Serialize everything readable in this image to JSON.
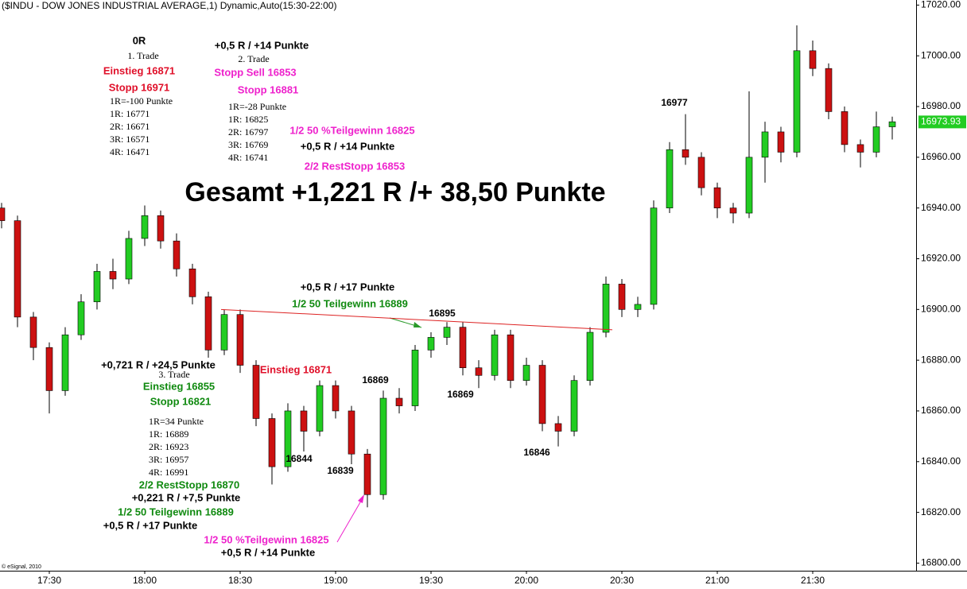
{
  "chart_data": {
    "type": "candlestick",
    "title": "($INDU - DOW JONES INDUSTRIAL AVERAGE,1) Dynamic,Auto(15:30-22:00)",
    "credit": "© eSignal, 2010",
    "x": [
      1035,
      1040,
      1045,
      1050,
      1055,
      1060,
      1065,
      1070,
      1075,
      1080,
      1085,
      1090,
      1095,
      1100,
      1105,
      1110,
      1115,
      1120,
      1125,
      1130,
      1135,
      1140,
      1145,
      1150,
      1155,
      1160,
      1165,
      1170,
      1175,
      1180,
      1185,
      1190,
      1195,
      1200,
      1205,
      1210,
      1215,
      1220,
      1225,
      1230,
      1235,
      1240,
      1245,
      1250,
      1255,
      1260,
      1265,
      1270,
      1275,
      1280,
      1285,
      1290,
      1295,
      1300,
      1305,
      1310,
      1315
    ],
    "ohlc": [
      [
        16940,
        16942,
        16932,
        16935
      ],
      [
        16935,
        16937,
        16893,
        16897
      ],
      [
        16897,
        16899,
        16880,
        16885
      ],
      [
        16885,
        16887,
        16859,
        16868
      ],
      [
        16868,
        16893,
        16866,
        16890
      ],
      [
        16890,
        16906,
        16888,
        16903
      ],
      [
        16903,
        16918,
        16900,
        16915
      ],
      [
        16915,
        16920,
        16908,
        16912
      ],
      [
        16912,
        16931,
        16910,
        16928
      ],
      [
        16928,
        16941,
        16925,
        16937
      ],
      [
        16937,
        16939,
        16924,
        16927
      ],
      [
        16927,
        16930,
        16913,
        16916
      ],
      [
        16916,
        16918,
        16902,
        16905
      ],
      [
        16905,
        16907,
        16881,
        16884
      ],
      [
        16884,
        16900,
        16882,
        16898
      ],
      [
        16898,
        16900,
        16875,
        16878
      ],
      [
        16878,
        16880,
        16854,
        16857
      ],
      [
        16857,
        16859,
        16831,
        16838
      ],
      [
        16838,
        16863,
        16836,
        16860
      ],
      [
        16860,
        16862,
        16844,
        16852
      ],
      [
        16852,
        16872,
        16850,
        16870
      ],
      [
        16870,
        16872,
        16857,
        16860
      ],
      [
        16860,
        16862,
        16839,
        16843
      ],
      [
        16843,
        16845,
        16822,
        16827
      ],
      [
        16827,
        16868,
        16825,
        16865
      ],
      [
        16865,
        16869,
        16859,
        16862
      ],
      [
        16862,
        16886,
        16860,
        16884
      ],
      [
        16884,
        16891,
        16881,
        16889
      ],
      [
        16889,
        16895,
        16886,
        16893
      ],
      [
        16893,
        16895,
        16874,
        16877
      ],
      [
        16877,
        16880,
        16869,
        16874
      ],
      [
        16874,
        16892,
        16872,
        16890
      ],
      [
        16890,
        16892,
        16869,
        16872
      ],
      [
        16872,
        16881,
        16870,
        16878
      ],
      [
        16878,
        16880,
        16852,
        16855
      ],
      [
        16855,
        16858,
        16846,
        16852
      ],
      [
        16852,
        16874,
        16850,
        16872
      ],
      [
        16872,
        16893,
        16870,
        16891
      ],
      [
        16891,
        16913,
        16889,
        16910
      ],
      [
        16910,
        16912,
        16897,
        16900
      ],
      [
        16900,
        16905,
        16897,
        16902
      ],
      [
        16902,
        16943,
        16900,
        16940
      ],
      [
        16940,
        16966,
        16938,
        16963
      ],
      [
        16963,
        16977,
        16957,
        16960
      ],
      [
        16960,
        16962,
        16945,
        16948
      ],
      [
        16948,
        16950,
        16936,
        16940
      ],
      [
        16940,
        16942,
        16934,
        16938
      ],
      [
        16938,
        16986,
        16936,
        16960
      ],
      [
        16960,
        16974,
        16950,
        16970
      ],
      [
        16970,
        16972,
        16958,
        16962
      ],
      [
        16962,
        17012,
        16960,
        17002
      ],
      [
        17002,
        17006,
        16992,
        16995
      ],
      [
        16995,
        16997,
        16975,
        16978
      ],
      [
        16978,
        16980,
        16962,
        16965
      ],
      [
        16965,
        16967,
        16956,
        16962
      ],
      [
        16962,
        16978,
        16960,
        16972
      ],
      [
        16972,
        16976,
        16967,
        16974
      ]
    ],
    "up_color": "#22cc22",
    "down_color": "#cc1111",
    "last_price": 16973.93,
    "last_price_color": "#22cc22",
    "trendline": {
      "x": [
        1104,
        1227
      ],
      "y": [
        16900,
        16892
      ],
      "color": "#dd2222"
    },
    "xlim": [
      1034.5,
      1322.5
    ],
    "ylim": [
      16797,
      17022
    ],
    "xticks": [
      {
        "value": 1050,
        "label": "17:30"
      },
      {
        "value": 1080,
        "label": "18:00"
      },
      {
        "value": 1110,
        "label": "18:30"
      },
      {
        "value": 1140,
        "label": "19:00"
      },
      {
        "value": 1170,
        "label": "19:30"
      },
      {
        "value": 1200,
        "label": "20:00"
      },
      {
        "value": 1230,
        "label": "20:30"
      },
      {
        "value": 1260,
        "label": "21:00"
      },
      {
        "value": 1290,
        "label": "21:30"
      }
    ],
    "yticks": [
      {
        "value": 16800,
        "label": "16800.00"
      },
      {
        "value": 16820,
        "label": "16820.00"
      },
      {
        "value": 16840,
        "label": "16840.00"
      },
      {
        "value": 16860,
        "label": "16860.00"
      },
      {
        "value": 16880,
        "label": "16880.00"
      },
      {
        "value": 16900,
        "label": "16900.00"
      },
      {
        "value": 16920,
        "label": "16920.00"
      },
      {
        "value": 16940,
        "label": "16940.00"
      },
      {
        "value": 16960,
        "label": "16960.00"
      },
      {
        "value": 16980,
        "label": "16980.00"
      },
      {
        "value": 17000,
        "label": "17000.00"
      },
      {
        "value": 17020,
        "label": "17020.00"
      }
    ],
    "annotations": [
      "0R",
      "1. Trade",
      "Einstieg 16871",
      "Stopp 16971",
      "1R=-100 Punkte",
      "1R: 16771",
      "2R: 16671",
      "3R: 16571",
      "4R: 16471",
      "+0,5 R / +14 Punkte",
      "2. Trade",
      "Stopp Sell 16853",
      "Stopp 16881",
      "1R=-28 Punkte",
      "1R: 16825",
      "2R: 16797",
      "3R: 16769",
      "4R: 16741",
      "1/2 50 %Teilgewinn 16825",
      "+0,5 R / +14 Punkte",
      "2/2 RestStopp 16853",
      "Gesamt +1,221 R /+ 38,50 Punkte",
      "+0,5 R / +17 Punkte",
      "1/2 50 Teilgewinn 16889",
      "16895",
      "+0,721 R / +24,5 Punkte",
      "3. Trade",
      "Einstieg 16855",
      "Stopp 16821",
      "Einstieg 16871",
      "16869",
      "16869",
      "1R=34 Punkte",
      "1R: 16889",
      "2R: 16923",
      "3R: 16957",
      "4R: 16991",
      "16844",
      "16839",
      "16846",
      "2/2 RestStopp 16870",
      "+0,221 R / +7,5 Punkte",
      "1/2 50 Teilgewinn 16889",
      "+0,5 R / +17 Punkte",
      "1/2 50 %Teilgewinn 16825",
      "+0,5 R / +14 Punkte",
      "16977"
    ]
  }
}
